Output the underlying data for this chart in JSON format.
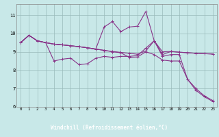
{
  "xlabel": "Windchill (Refroidissement éolien,°C)",
  "bg_color": "#c8e8e8",
  "plot_bg_color": "#c8e8e8",
  "label_bg_color": "#6633aa",
  "label_text_color": "#ffffff",
  "line_color": "#883388",
  "grid_color": "#99bbbb",
  "xlim_min": -0.5,
  "xlim_max": 23.5,
  "ylim_min": 6.0,
  "ylim_max": 11.6,
  "yticks": [
    6,
    7,
    8,
    9,
    10,
    11
  ],
  "xticks": [
    0,
    1,
    2,
    3,
    4,
    5,
    6,
    7,
    8,
    9,
    10,
    11,
    12,
    13,
    14,
    15,
    16,
    17,
    18,
    19,
    20,
    21,
    22,
    23
  ],
  "series": [
    [
      9.5,
      9.9,
      9.6,
      9.5,
      8.5,
      8.6,
      8.65,
      8.3,
      8.35,
      8.65,
      8.75,
      8.7,
      8.75,
      8.75,
      8.8,
      9.2,
      9.6,
      8.75,
      8.85,
      8.85,
      7.5,
      7.0,
      6.6,
      6.35
    ],
    [
      9.5,
      9.9,
      9.6,
      9.5,
      9.42,
      9.38,
      9.33,
      9.28,
      9.22,
      9.15,
      9.08,
      9.02,
      8.97,
      8.92,
      8.87,
      9.05,
      9.6,
      9.0,
      9.02,
      8.98,
      8.95,
      8.92,
      8.9,
      8.88
    ],
    [
      9.5,
      9.9,
      9.6,
      9.5,
      9.42,
      9.38,
      9.33,
      9.28,
      9.22,
      9.15,
      10.35,
      10.65,
      10.1,
      10.35,
      10.4,
      11.2,
      9.6,
      8.85,
      9.02,
      8.98,
      8.95,
      8.92,
      8.9,
      8.88
    ],
    [
      9.5,
      9.9,
      9.6,
      9.5,
      9.42,
      9.38,
      9.33,
      9.28,
      9.22,
      9.15,
      9.08,
      9.0,
      8.95,
      8.7,
      8.72,
      9.0,
      8.85,
      8.55,
      8.5,
      8.5,
      7.5,
      6.9,
      6.55,
      6.3
    ]
  ]
}
